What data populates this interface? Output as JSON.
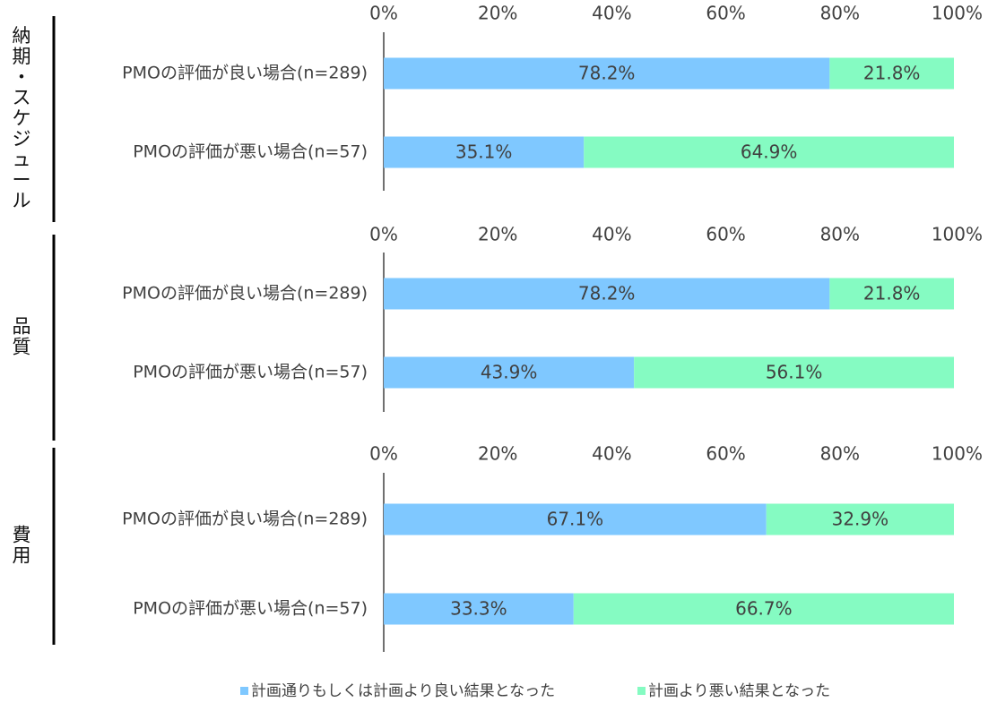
{
  "chart_data": {
    "type": "bar",
    "orientation": "horizontal",
    "stacked": true,
    "xlim": [
      0,
      100
    ],
    "x_ticks": [
      "0%",
      "20%",
      "40%",
      "60%",
      "80%",
      "100%"
    ],
    "categories": [
      "PMOの評価が良い場合(n=289)",
      "PMOの評価が悪い場合(n=57)"
    ],
    "colors": {
      "series1": "#7fc8ff",
      "series2": "#85fbc2"
    },
    "series": [
      {
        "name": "計画通りもしくは計画より良い結果となった"
      },
      {
        "name": "計画より悪い結果となった"
      }
    ],
    "panels": [
      {
        "group_label": "納期・スケジュール",
        "rows": [
          {
            "category": "PMOの評価が良い場合(n=289)",
            "values": [
              78.2,
              21.8
            ],
            "labels": [
              "78.2%",
              "21.8%"
            ]
          },
          {
            "category": "PMOの評価が悪い場合(n=57)",
            "values": [
              35.1,
              64.9
            ],
            "labels": [
              "35.1%",
              "64.9%"
            ]
          }
        ]
      },
      {
        "group_label": "品質",
        "rows": [
          {
            "category": "PMOの評価が良い場合(n=289)",
            "values": [
              78.2,
              21.8
            ],
            "labels": [
              "78.2%",
              "21.8%"
            ]
          },
          {
            "category": "PMOの評価が悪い場合(n=57)",
            "values": [
              43.9,
              56.1
            ],
            "labels": [
              "43.9%",
              "56.1%"
            ]
          }
        ]
      },
      {
        "group_label": "費用",
        "rows": [
          {
            "category": "PMOの評価が良い場合(n=289)",
            "values": [
              67.1,
              32.9
            ],
            "labels": [
              "67.1%",
              "32.9%"
            ]
          },
          {
            "category": "PMOの評価が悪い場合(n=57)",
            "values": [
              33.3,
              66.7
            ],
            "labels": [
              "33.3%",
              "66.7%"
            ]
          }
        ]
      }
    ],
    "legend": {
      "position": "bottom",
      "items": [
        "計画通りもしくは計画より良い結果となった",
        "計画より悪い結果となった"
      ]
    }
  }
}
